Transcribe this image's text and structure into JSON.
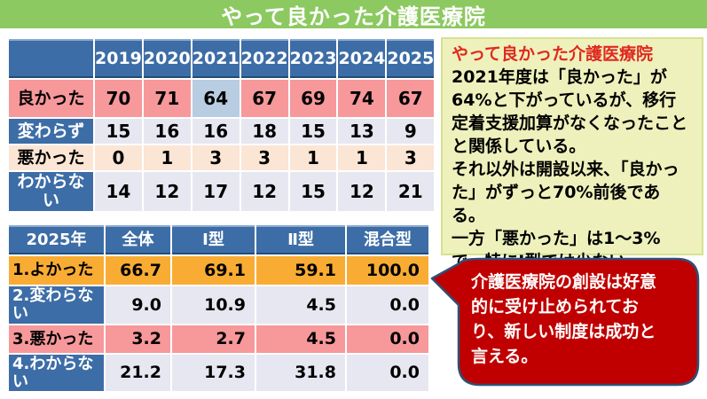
{
  "title": "やって良かった介護医療院",
  "colors": {
    "title_bg": "#8CC960",
    "header_blue": "#3D6DA6",
    "salmon": "#F7989B",
    "peach": "#FBE5D5",
    "lavender": "#E7E7F1",
    "steel": "#B8CCE2",
    "orange": "#F9AC33",
    "note_bg": "#EEF1BB",
    "note_border": "#D6E291",
    "heading_red": "#E02920",
    "bubble_red": "#C00000",
    "bubble_border": "#2E5077"
  },
  "table_yearly": {
    "columns": [
      "",
      "2019",
      "2020",
      "2021",
      "2022",
      "2023",
      "2024",
      "2025"
    ],
    "rows": [
      {
        "label": "良かった",
        "label_style": "salmon",
        "cells_style": "salmon",
        "values": [
          "70",
          "71",
          "64",
          "67",
          "69",
          "74",
          "67"
        ],
        "cell_style_overrides": {
          "2": "steel"
        }
      },
      {
        "label": "変わらず",
        "label_style": "blue",
        "cells_style": "lavender",
        "values": [
          "15",
          "16",
          "16",
          "18",
          "15",
          "13",
          "9"
        ]
      },
      {
        "label": "悪かった",
        "label_style": "peach",
        "cells_style": "peach",
        "values": [
          "0",
          "1",
          "3",
          "3",
          "1",
          "1",
          "3"
        ]
      },
      {
        "label": "わからない",
        "label_style": "blue",
        "cells_style": "lavender",
        "values": [
          "14",
          "12",
          "17",
          "12",
          "15",
          "12",
          "21"
        ]
      }
    ]
  },
  "table_by_type": {
    "columns": [
      "2025年",
      "全体",
      "Ⅰ型",
      "Ⅱ型",
      "混合型"
    ],
    "rows": [
      {
        "label": "1.よかった",
        "label_style": "orange",
        "cells_style": "orange",
        "values": [
          "66.7",
          "69.1",
          "59.1",
          "100.0"
        ]
      },
      {
        "label": "2.変わらない",
        "label_style": "blue",
        "cells_style": "lavender",
        "values": [
          "9.0",
          "10.9",
          "4.5",
          "0.0"
        ]
      },
      {
        "label": "3.悪かった",
        "label_style": "salmon",
        "cells_style": "salmon",
        "values": [
          "3.2",
          "2.7",
          "4.5",
          "0.0"
        ]
      },
      {
        "label": "4.わからない",
        "label_style": "blue",
        "cells_style": "lavender",
        "values": [
          "21.2",
          "17.3",
          "31.8",
          "0.0"
        ]
      }
    ]
  },
  "note": {
    "heading": "やって良かった介護医療院",
    "lines": [
      "2021年度は「良かった」が64%と下がっているが、移行定着支援加算がなくなったことと関係している。",
      "それ以外は開設以来、「良かった」がずっと70%前後である。",
      "一方「悪かった」は1～3% で、特にⅠ型では少ない。"
    ]
  },
  "callout": {
    "text": "介護医療院の創設は好意的に受け止められており、新しい制度は成功と言える。"
  }
}
